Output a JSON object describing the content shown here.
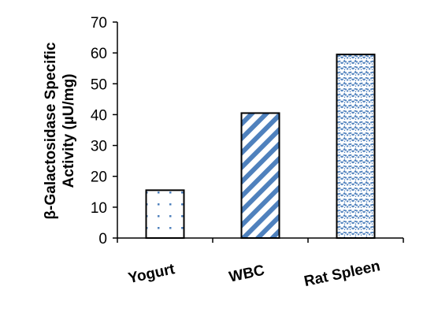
{
  "chart_data": {
    "type": "bar",
    "categories": [
      "Yogurt",
      "WBC",
      "Rat Spleen"
    ],
    "values": [
      15.5,
      40.5,
      59.5
    ],
    "title": "",
    "xlabel": "",
    "ylabel_lines": [
      "β-Galactosidase Specific",
      "Activity (µU/mg)"
    ],
    "ylim": [
      0,
      70
    ],
    "yticks": [
      0,
      10,
      20,
      30,
      40,
      50,
      60,
      70
    ],
    "grid": false,
    "legend": "none",
    "bar_patterns": [
      "dots",
      "diagonal-stripes",
      "wave-lattice"
    ],
    "colors": {
      "pattern": "#4f81bd",
      "bar_edge": "#000000",
      "axis": "#000000"
    }
  }
}
